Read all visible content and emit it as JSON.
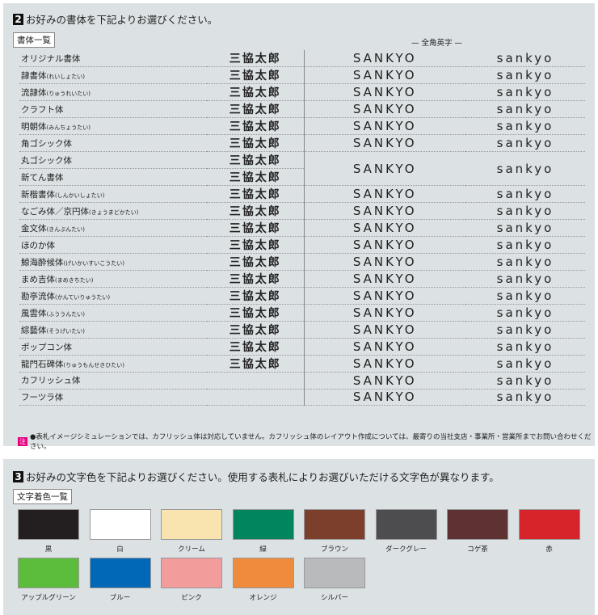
{
  "font_section": {
    "number": "2",
    "title": "お好みの書体を下記よりお選びください。",
    "tag": "書体一覧",
    "latin_header": "— 全角英字 —",
    "sample_kanji": "三協太郎",
    "sample_upper": "SANKYO",
    "sample_lower": "sankyo",
    "rows": [
      {
        "name": "オリジナル書体",
        "reading": ""
      },
      {
        "name": "隷書体",
        "reading": "(れいしょたい)"
      },
      {
        "name": "流隷体",
        "reading": "(りゅうれいたい)"
      },
      {
        "name": "クラフト体",
        "reading": ""
      },
      {
        "name": "明朝体",
        "reading": "(みんちょうたい)"
      },
      {
        "name": "角ゴシック体",
        "reading": ""
      },
      {
        "name": "丸ゴシック体",
        "reading": ""
      },
      {
        "name": "新てん書体",
        "reading": ""
      },
      {
        "name": "新楷書体",
        "reading": "(しんかいしょたい)"
      },
      {
        "name": "なごみ体／京円体",
        "reading": "(きょうまどかたい)"
      },
      {
        "name": "金文体",
        "reading": "(きんぶんたい)"
      },
      {
        "name": "ほのか体",
        "reading": ""
      },
      {
        "name": "鯨海酔候体",
        "reading": "(げいかいすいこうたい)"
      },
      {
        "name": "まめ吉体",
        "reading": "(まめきちたい)"
      },
      {
        "name": "勘亭流体",
        "reading": "(かんていりゅうたい)"
      },
      {
        "name": "風雲体",
        "reading": "(ふううんたい)"
      },
      {
        "name": "綜藝体",
        "reading": "(そうげいたい)"
      },
      {
        "name": "ポップコン体",
        "reading": ""
      },
      {
        "name": "龍門石碑体",
        "reading": "(りゅうもんせきひたい)"
      },
      {
        "name": "カフリッシュ体",
        "reading": ""
      },
      {
        "name": "フーツラ体",
        "reading": ""
      }
    ],
    "note_mark": "注",
    "note": "●表札イメージシミュレーションでは、カフリッシュ体は対応していません。カフリッシュ体のレイアウト作成については、最寄りの当社支店・事業所・営業所までお問い合わせください。"
  },
  "color_section": {
    "number": "3",
    "title": "お好みの文字色を下記よりお選びください。使用する表札によりお選びいただける文字色が異なります。",
    "tag": "文字着色一覧",
    "colors": [
      {
        "label": "黒",
        "hex": "#231f20"
      },
      {
        "label": "白",
        "hex": "#ffffff"
      },
      {
        "label": "クリーム",
        "hex": "#f9e4b0"
      },
      {
        "label": "緑",
        "hex": "#00855f"
      },
      {
        "label": "ブラウン",
        "hex": "#7b3f2b"
      },
      {
        "label": "ダークグレー",
        "hex": "#4d4d4f"
      },
      {
        "label": "コゲ茶",
        "hex": "#5e3232"
      },
      {
        "label": "赤",
        "hex": "#d7232a"
      },
      {
        "label": "アップルグリーン",
        "hex": "#5cbc3c"
      },
      {
        "label": "ブルー",
        "hex": "#0068b7"
      },
      {
        "label": "ピンク",
        "hex": "#f29c9c"
      },
      {
        "label": "オレンジ",
        "hex": "#f08a3c"
      },
      {
        "label": "シルバー",
        "hex": "#b8babc"
      }
    ]
  }
}
